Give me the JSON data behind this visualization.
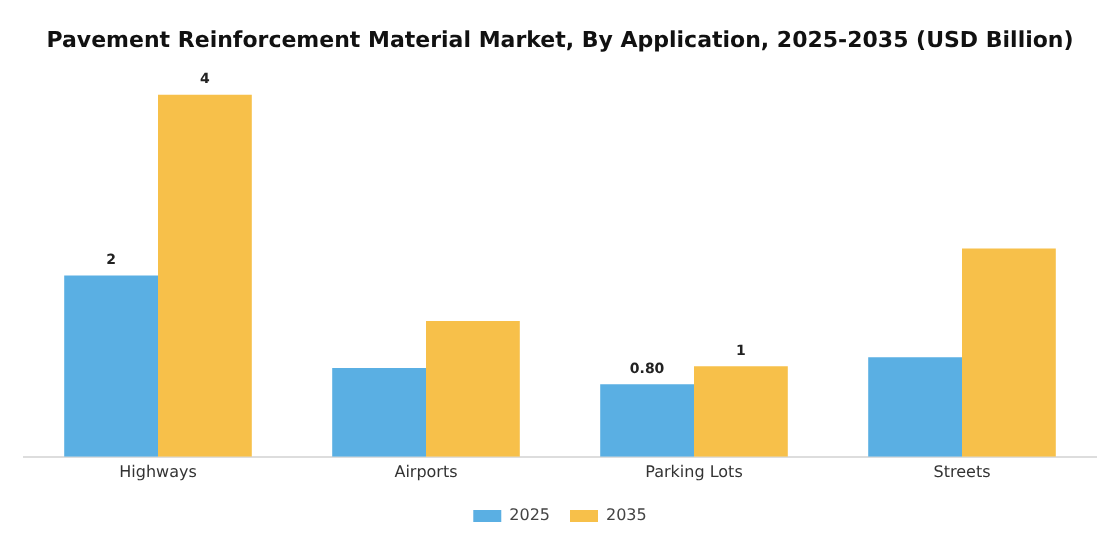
{
  "chart_data": {
    "type": "bar",
    "title": "Pavement Reinforcement Material Market, By Application, 2025-2035 (USD Billion)",
    "legend": "bottom",
    "grid": false,
    "categories": [
      "Highways",
      "Airports",
      "Parking Lots",
      "Streets"
    ],
    "series": [
      {
        "name": "2025",
        "color": "#5aafe3",
        "values": [
          2,
          0.98,
          0.8,
          1.1
        ],
        "value_labels": [
          "2",
          null,
          "0.80",
          null
        ]
      },
      {
        "name": "2035",
        "color": "#f7c04a",
        "values": [
          4,
          1.5,
          1,
          2.3
        ],
        "value_labels": [
          "4",
          null,
          "1",
          null
        ]
      }
    ]
  }
}
